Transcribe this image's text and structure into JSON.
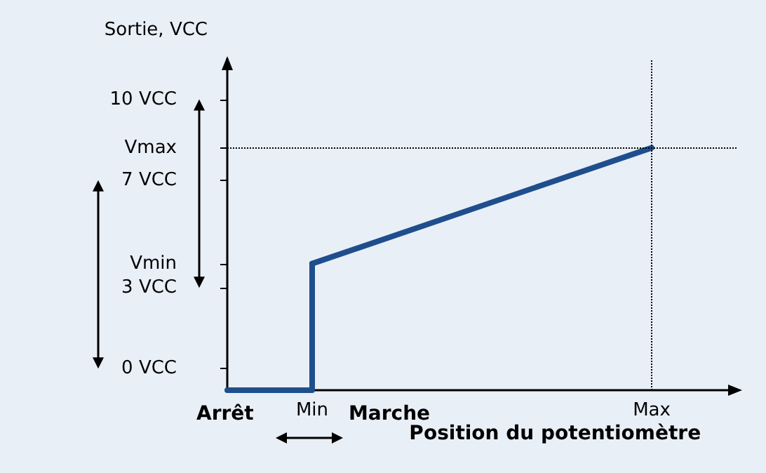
{
  "chart_data": {
    "type": "line",
    "ylabel": "Sortie, VCC",
    "xlabel": "Position du potentiomètre",
    "categories": [
      null,
      "Min",
      null,
      null,
      null,
      "Max",
      null
    ],
    "series": [
      {
        "type": "step",
        "color": "#1f4e8c",
        "values": [
          -0.8,
          3.9,
          null,
          null,
          null,
          null,
          null
        ]
      },
      {
        "color": "#1f4e8c",
        "values": [
          null,
          3.9,
          null,
          null,
          null,
          8.2,
          null
        ]
      }
    ],
    "ylim": [
      -0.8,
      11.5
    ],
    "yticks": [
      {
        "value": 0,
        "label": "0 VCC"
      },
      {
        "value": 3,
        "label": "3 VCC"
      },
      {
        "value": 3.9,
        "label": "Vmin"
      },
      {
        "value": 7,
        "label": "7 VCC"
      },
      {
        "value": 8.2,
        "label": "Vmax"
      },
      {
        "value": 10,
        "label": "10 VCC"
      }
    ],
    "ref_lines": [
      {
        "axis": "y",
        "value": 8.2,
        "line_style": "dotted",
        "color": "#000000"
      },
      {
        "axis": "x",
        "value": "Max",
        "line_style": "dotted",
        "color": "#000000"
      }
    ],
    "annotations": [
      "Arrêt",
      "Marche"
    ],
    "grid": false,
    "marker": "none",
    "line_style": "solid"
  }
}
